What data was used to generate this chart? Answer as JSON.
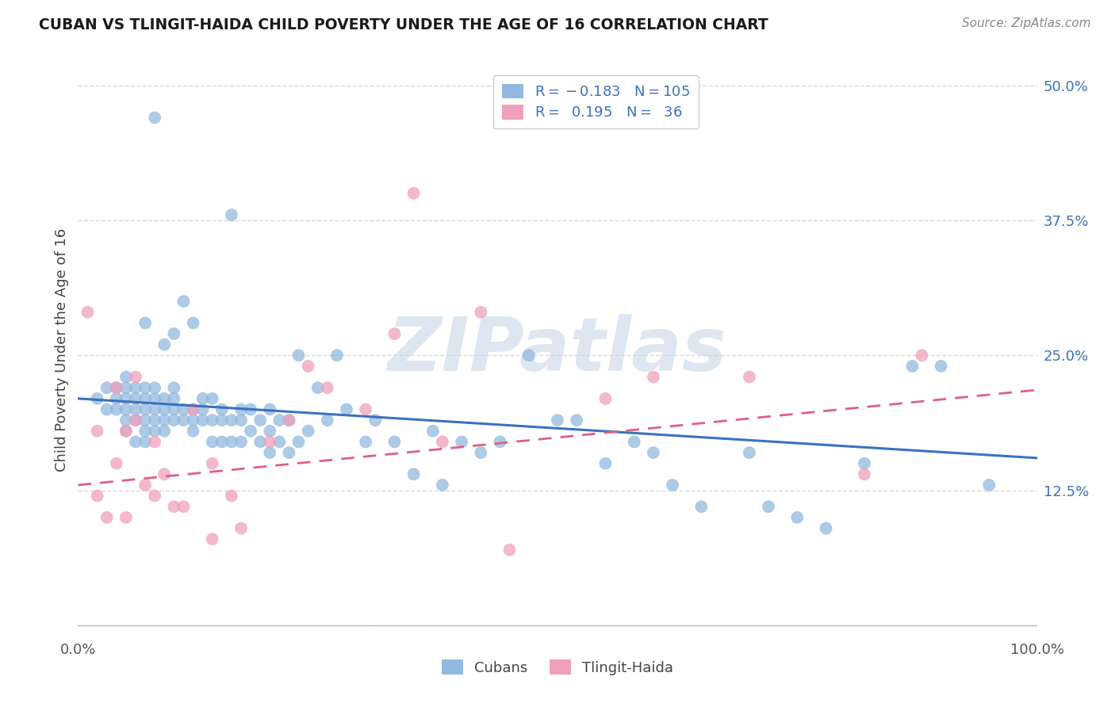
{
  "title": "CUBAN VS TLINGIT-HAIDA CHILD POVERTY UNDER THE AGE OF 16 CORRELATION CHART",
  "source": "Source: ZipAtlas.com",
  "ylabel": "Child Poverty Under the Age of 16",
  "xlim": [
    0.0,
    1.0
  ],
  "ylim": [
    -0.01,
    0.52
  ],
  "yticks": [
    0.0,
    0.125,
    0.25,
    0.375,
    0.5
  ],
  "ytick_labels": [
    "",
    "12.5%",
    "25.0%",
    "37.5%",
    "50.0%"
  ],
  "xtick_labels": [
    "0.0%",
    "100.0%"
  ],
  "background_color": "#ffffff",
  "grid_color": "#d8d8d8",
  "blue_color": "#92b9e0",
  "pink_color": "#f0a0bc",
  "line_blue": "#3a72c0",
  "line_pink": "#e06080",
  "watermark_color": "#c8d8e8",
  "watermark_text": "ZIPatlas",
  "slope_blue": -0.055,
  "intercept_blue": 0.21,
  "slope_pink": 0.088,
  "intercept_pink": 0.13,
  "cubans_x": [
    0.02,
    0.03,
    0.03,
    0.04,
    0.04,
    0.04,
    0.05,
    0.05,
    0.05,
    0.05,
    0.05,
    0.05,
    0.06,
    0.06,
    0.06,
    0.06,
    0.06,
    0.07,
    0.07,
    0.07,
    0.07,
    0.07,
    0.07,
    0.07,
    0.08,
    0.08,
    0.08,
    0.08,
    0.08,
    0.08,
    0.09,
    0.09,
    0.09,
    0.09,
    0.09,
    0.1,
    0.1,
    0.1,
    0.1,
    0.1,
    0.11,
    0.11,
    0.11,
    0.12,
    0.12,
    0.12,
    0.12,
    0.13,
    0.13,
    0.13,
    0.14,
    0.14,
    0.14,
    0.15,
    0.15,
    0.15,
    0.16,
    0.16,
    0.16,
    0.17,
    0.17,
    0.17,
    0.18,
    0.18,
    0.19,
    0.19,
    0.2,
    0.2,
    0.2,
    0.21,
    0.21,
    0.22,
    0.22,
    0.23,
    0.23,
    0.24,
    0.25,
    0.26,
    0.27,
    0.28,
    0.3,
    0.31,
    0.33,
    0.35,
    0.37,
    0.38,
    0.4,
    0.42,
    0.44,
    0.47,
    0.5,
    0.52,
    0.55,
    0.58,
    0.6,
    0.62,
    0.65,
    0.7,
    0.72,
    0.75,
    0.78,
    0.82,
    0.87,
    0.9,
    0.95
  ],
  "cubans_y": [
    0.21,
    0.2,
    0.22,
    0.2,
    0.21,
    0.22,
    0.18,
    0.19,
    0.2,
    0.21,
    0.22,
    0.23,
    0.17,
    0.19,
    0.2,
    0.21,
    0.22,
    0.17,
    0.18,
    0.19,
    0.2,
    0.21,
    0.22,
    0.28,
    0.18,
    0.19,
    0.2,
    0.21,
    0.22,
    0.47,
    0.18,
    0.19,
    0.2,
    0.21,
    0.26,
    0.19,
    0.2,
    0.21,
    0.22,
    0.27,
    0.19,
    0.2,
    0.3,
    0.18,
    0.19,
    0.2,
    0.28,
    0.19,
    0.2,
    0.21,
    0.17,
    0.19,
    0.21,
    0.17,
    0.19,
    0.2,
    0.17,
    0.19,
    0.38,
    0.17,
    0.19,
    0.2,
    0.18,
    0.2,
    0.17,
    0.19,
    0.16,
    0.18,
    0.2,
    0.17,
    0.19,
    0.16,
    0.19,
    0.17,
    0.25,
    0.18,
    0.22,
    0.19,
    0.25,
    0.2,
    0.17,
    0.19,
    0.17,
    0.14,
    0.18,
    0.13,
    0.17,
    0.16,
    0.17,
    0.25,
    0.19,
    0.19,
    0.15,
    0.17,
    0.16,
    0.13,
    0.11,
    0.16,
    0.11,
    0.1,
    0.09,
    0.15,
    0.24,
    0.24,
    0.13
  ],
  "tlingit_x": [
    0.01,
    0.02,
    0.02,
    0.03,
    0.04,
    0.04,
    0.05,
    0.05,
    0.06,
    0.06,
    0.07,
    0.08,
    0.08,
    0.09,
    0.1,
    0.11,
    0.12,
    0.14,
    0.14,
    0.16,
    0.17,
    0.2,
    0.22,
    0.24,
    0.26,
    0.3,
    0.33,
    0.35,
    0.38,
    0.42,
    0.45,
    0.55,
    0.6,
    0.7,
    0.82,
    0.88
  ],
  "tlingit_y": [
    0.29,
    0.12,
    0.18,
    0.1,
    0.15,
    0.22,
    0.1,
    0.18,
    0.19,
    0.23,
    0.13,
    0.12,
    0.17,
    0.14,
    0.11,
    0.11,
    0.2,
    0.08,
    0.15,
    0.12,
    0.09,
    0.17,
    0.19,
    0.24,
    0.22,
    0.2,
    0.27,
    0.4,
    0.17,
    0.29,
    0.07,
    0.21,
    0.23,
    0.23,
    0.14,
    0.25
  ]
}
